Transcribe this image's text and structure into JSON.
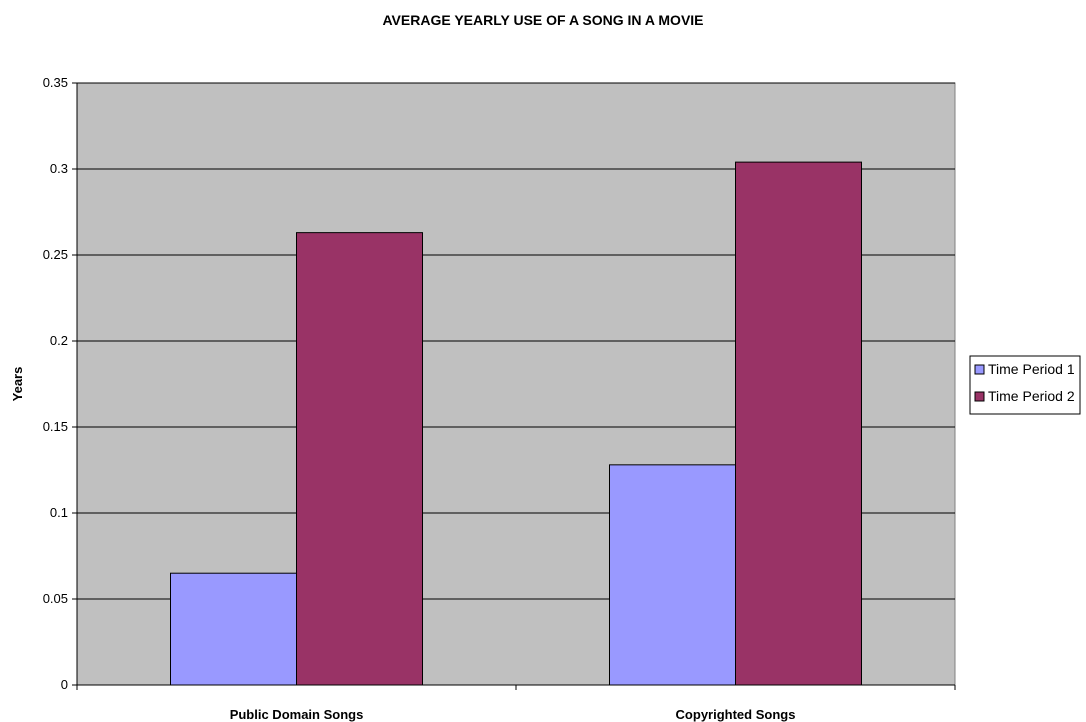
{
  "chart_data": {
    "type": "bar",
    "title": "AVERAGE YEARLY USE OF A SONG IN A MOVIE",
    "xlabel": "",
    "ylabel": "Years",
    "categories": [
      "Public Domain Songs",
      "Copyrighted Songs"
    ],
    "series": [
      {
        "name": "Time Period 1",
        "values": [
          0.065,
          0.128
        ],
        "color": "#9999ff"
      },
      {
        "name": "Time Period 2",
        "values": [
          0.263,
          0.304
        ],
        "color": "#993366"
      }
    ],
    "ylim": [
      0,
      0.35
    ],
    "yticks": [
      "0",
      "0.05",
      "0.1",
      "0.15",
      "0.2",
      "0.25",
      "0.3",
      "0.35"
    ],
    "grid": true,
    "legend_position": "right",
    "plot_background": "#c0c0c0"
  }
}
